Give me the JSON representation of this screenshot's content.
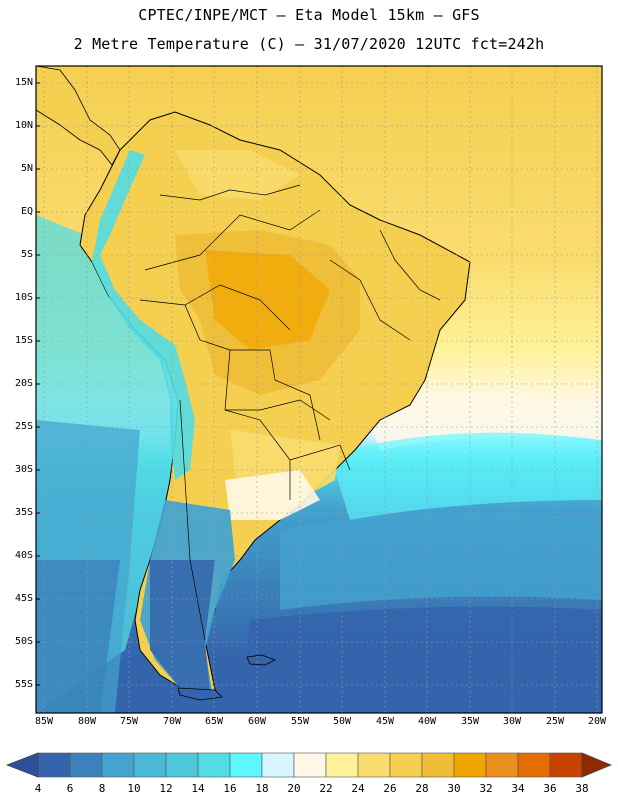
{
  "header": {
    "line1": "CPTEC/INPE/MCT –  Eta Model 15km – GFS",
    "line2": "2 Metre Temperature (C) – 31/07/2020 12UTC fct=242h"
  },
  "map": {
    "lat_labels": [
      "15N",
      "10N",
      "5N",
      "EQ",
      "5S",
      "10S",
      "15S",
      "20S",
      "25S",
      "30S",
      "35S",
      "40S",
      "45S",
      "50S",
      "55S"
    ],
    "lon_labels": [
      "85W",
      "80W",
      "75W",
      "70W",
      "65W",
      "60W",
      "55W",
      "50W",
      "45W",
      "40W",
      "35W",
      "30W",
      "25W",
      "20W"
    ]
  },
  "colorbar": {
    "labels": [
      "4",
      "6",
      "8",
      "10",
      "12",
      "14",
      "16",
      "18",
      "20",
      "22",
      "24",
      "26",
      "28",
      "30",
      "32",
      "34",
      "36",
      "38"
    ],
    "colors": [
      "#3464ac",
      "#3b82bc",
      "#44a3cf",
      "#4cb8d8",
      "#50c8dc",
      "#52dce6",
      "#5ef7ff",
      "#d8f6ff",
      "#fff8e6",
      "#fff29a",
      "#fadc6e",
      "#f5cf50",
      "#efbd36",
      "#f1a500",
      "#eb8f1e",
      "#e56d00",
      "#c94300",
      "#a52a00"
    ]
  }
}
